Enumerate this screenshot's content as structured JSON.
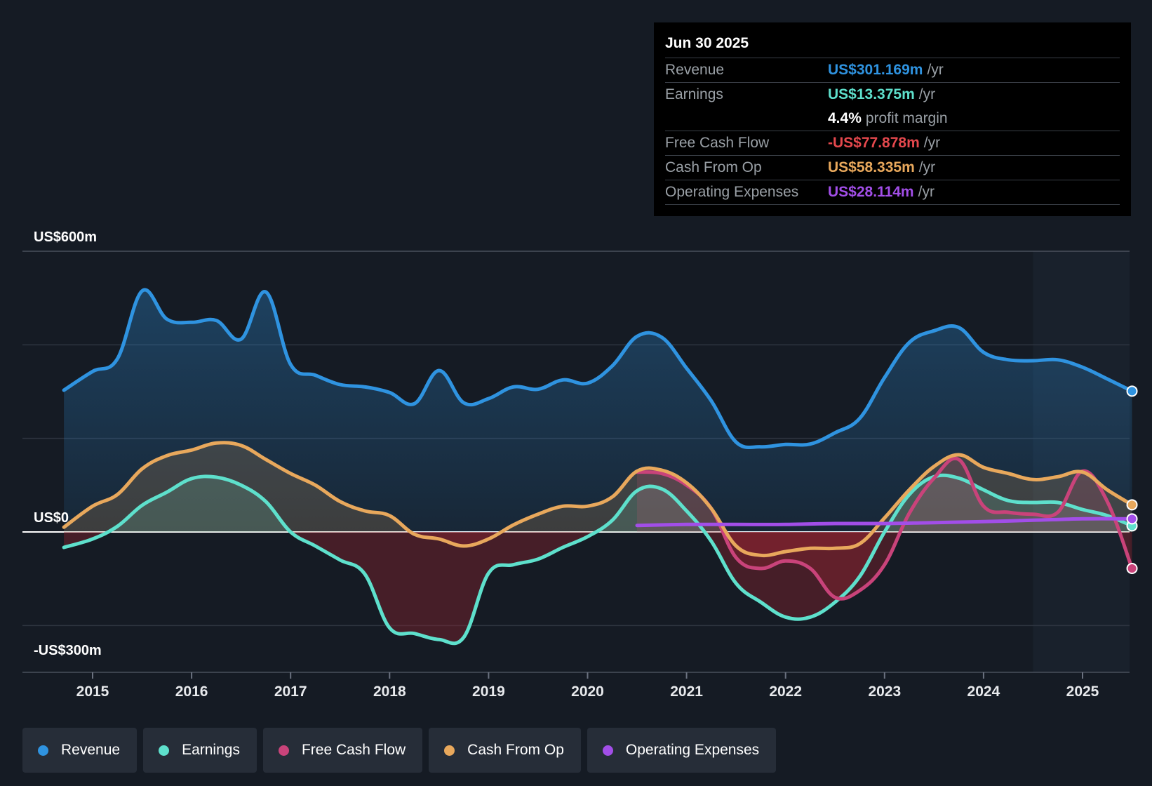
{
  "tooltip": {
    "date": "Jun 30 2025",
    "rows": [
      {
        "label": "Revenue",
        "value": "US$301.169m",
        "unit": "/yr"
      },
      {
        "label": "Earnings",
        "value": "US$13.375m",
        "unit": "/yr"
      },
      {
        "label": "",
        "value": "4.4%",
        "unit": "profit margin"
      },
      {
        "label": "Free Cash Flow",
        "value": "-US$77.878m",
        "unit": "/yr"
      },
      {
        "label": "Cash From Op",
        "value": "US$58.335m",
        "unit": "/yr"
      },
      {
        "label": "Operating Expenses",
        "value": "US$28.114m",
        "unit": "/yr"
      }
    ]
  },
  "legend": [
    {
      "label": "Revenue",
      "color": "#2f93e0"
    },
    {
      "label": "Earnings",
      "color": "#5ee0cc"
    },
    {
      "label": "Free Cash Flow",
      "color": "#c9437a"
    },
    {
      "label": "Cash From Op",
      "color": "#e8a85c"
    },
    {
      "label": "Operating Expenses",
      "color": "#a24ee8"
    }
  ],
  "colors": {
    "background": "#151b24",
    "negative_fill": "#8a2430",
    "axis_line": "#ffffff",
    "grid": "#2e3540"
  },
  "chart_data": {
    "type": "line",
    "title": "",
    "xlabel": "",
    "ylabel": "",
    "units": "US$ millions",
    "xlim": [
      2014.25,
      2025.5
    ],
    "ylim": [
      -300,
      600
    ],
    "y_tick_labels": [
      {
        "value": 600,
        "label": "US$600m"
      },
      {
        "value": 0,
        "label": "US$0"
      },
      {
        "value": -300,
        "label": "-US$300m"
      }
    ],
    "x_ticks": [
      2015,
      2016,
      2017,
      2018,
      2019,
      2020,
      2021,
      2022,
      2023,
      2024,
      2025
    ],
    "x_tick_labels": [
      "2015",
      "2016",
      "2017",
      "2018",
      "2019",
      "2020",
      "2021",
      "2022",
      "2023",
      "2024",
      "2025"
    ],
    "forecast_start": 2024.5,
    "series": [
      {
        "name": "Revenue",
        "color": "#2f93e0",
        "fill": true,
        "x": [
          2014.71,
          2015.0,
          2015.25,
          2015.5,
          2015.75,
          2016.0,
          2016.25,
          2016.5,
          2016.75,
          2017.0,
          2017.25,
          2017.5,
          2017.75,
          2018.0,
          2018.25,
          2018.5,
          2018.75,
          2019.0,
          2019.25,
          2019.5,
          2019.75,
          2020.0,
          2020.25,
          2020.5,
          2020.75,
          2021.0,
          2021.25,
          2021.5,
          2021.75,
          2022.0,
          2022.25,
          2022.5,
          2022.75,
          2023.0,
          2023.25,
          2023.5,
          2023.75,
          2024.0,
          2024.25,
          2024.5,
          2024.75,
          2025.0,
          2025.25,
          2025.5
        ],
        "values": [
          303,
          343,
          370,
          515,
          455,
          448,
          452,
          412,
          513,
          358,
          335,
          315,
          310,
          298,
          274,
          345,
          276,
          285,
          310,
          305,
          325,
          318,
          355,
          418,
          416,
          350,
          280,
          192,
          182,
          187,
          188,
          212,
          243,
          330,
          405,
          430,
          437,
          384,
          368,
          366,
          368,
          352,
          327,
          301
        ]
      },
      {
        "name": "Earnings",
        "color": "#5ee0cc",
        "fill": true,
        "x": [
          2014.71,
          2015.0,
          2015.25,
          2015.5,
          2015.75,
          2016.0,
          2016.25,
          2016.5,
          2016.75,
          2017.0,
          2017.25,
          2017.5,
          2017.75,
          2018.0,
          2018.25,
          2018.5,
          2018.75,
          2019.0,
          2019.25,
          2019.5,
          2019.75,
          2020.0,
          2020.25,
          2020.5,
          2020.75,
          2021.0,
          2021.25,
          2021.5,
          2021.75,
          2022.0,
          2022.25,
          2022.5,
          2022.75,
          2023.0,
          2023.25,
          2023.5,
          2023.75,
          2024.0,
          2024.25,
          2024.5,
          2024.75,
          2025.0,
          2025.25,
          2025.5
        ],
        "values": [
          -33,
          -15,
          12,
          57,
          85,
          114,
          117,
          100,
          65,
          0,
          -30,
          -60,
          -90,
          -205,
          -217,
          -230,
          -225,
          -88,
          -70,
          -58,
          -33,
          -10,
          25,
          88,
          92,
          45,
          -20,
          -110,
          -150,
          -182,
          -182,
          -150,
          -95,
          0,
          80,
          118,
          115,
          90,
          67,
          63,
          63,
          48,
          35,
          13
        ]
      },
      {
        "name": "Free Cash Flow",
        "color": "#c9437a",
        "fill": true,
        "x": [
          2020.5,
          2020.75,
          2021.0,
          2021.25,
          2021.5,
          2021.75,
          2022.0,
          2022.25,
          2022.5,
          2022.75,
          2023.0,
          2023.25,
          2023.5,
          2023.75,
          2024.0,
          2024.25,
          2024.5,
          2024.75,
          2025.0,
          2025.25,
          2025.5
        ],
        "values": [
          128,
          125,
          100,
          50,
          -55,
          -78,
          -62,
          -78,
          -140,
          -125,
          -70,
          40,
          115,
          155,
          55,
          42,
          38,
          42,
          130,
          65,
          -78
        ]
      },
      {
        "name": "Cash From Op",
        "color": "#e8a85c",
        "fill": true,
        "x": [
          2014.71,
          2015.0,
          2015.25,
          2015.5,
          2015.75,
          2016.0,
          2016.25,
          2016.5,
          2016.75,
          2017.0,
          2017.25,
          2017.5,
          2017.75,
          2018.0,
          2018.25,
          2018.5,
          2018.75,
          2019.0,
          2019.25,
          2019.5,
          2019.75,
          2020.0,
          2020.25,
          2020.5,
          2020.75,
          2021.0,
          2021.25,
          2021.5,
          2021.75,
          2022.0,
          2022.25,
          2022.5,
          2022.75,
          2023.0,
          2023.25,
          2023.5,
          2023.75,
          2024.0,
          2024.25,
          2024.5,
          2024.75,
          2025.0,
          2025.25,
          2025.5
        ],
        "values": [
          10,
          55,
          80,
          135,
          163,
          175,
          190,
          185,
          155,
          125,
          100,
          65,
          45,
          35,
          -5,
          -15,
          -30,
          -15,
          15,
          38,
          55,
          55,
          75,
          130,
          132,
          105,
          50,
          -30,
          -50,
          -42,
          -35,
          -35,
          -25,
          30,
          90,
          140,
          165,
          138,
          125,
          112,
          118,
          128,
          90,
          58
        ]
      },
      {
        "name": "Operating Expenses",
        "color": "#a24ee8",
        "fill": false,
        "x": [
          2020.5,
          2021.0,
          2021.5,
          2022.0,
          2022.5,
          2023.0,
          2023.5,
          2024.0,
          2024.5,
          2025.0,
          2025.5
        ],
        "values": [
          14,
          16,
          16,
          16,
          18,
          18,
          20,
          22,
          25,
          28,
          28
        ]
      }
    ]
  }
}
